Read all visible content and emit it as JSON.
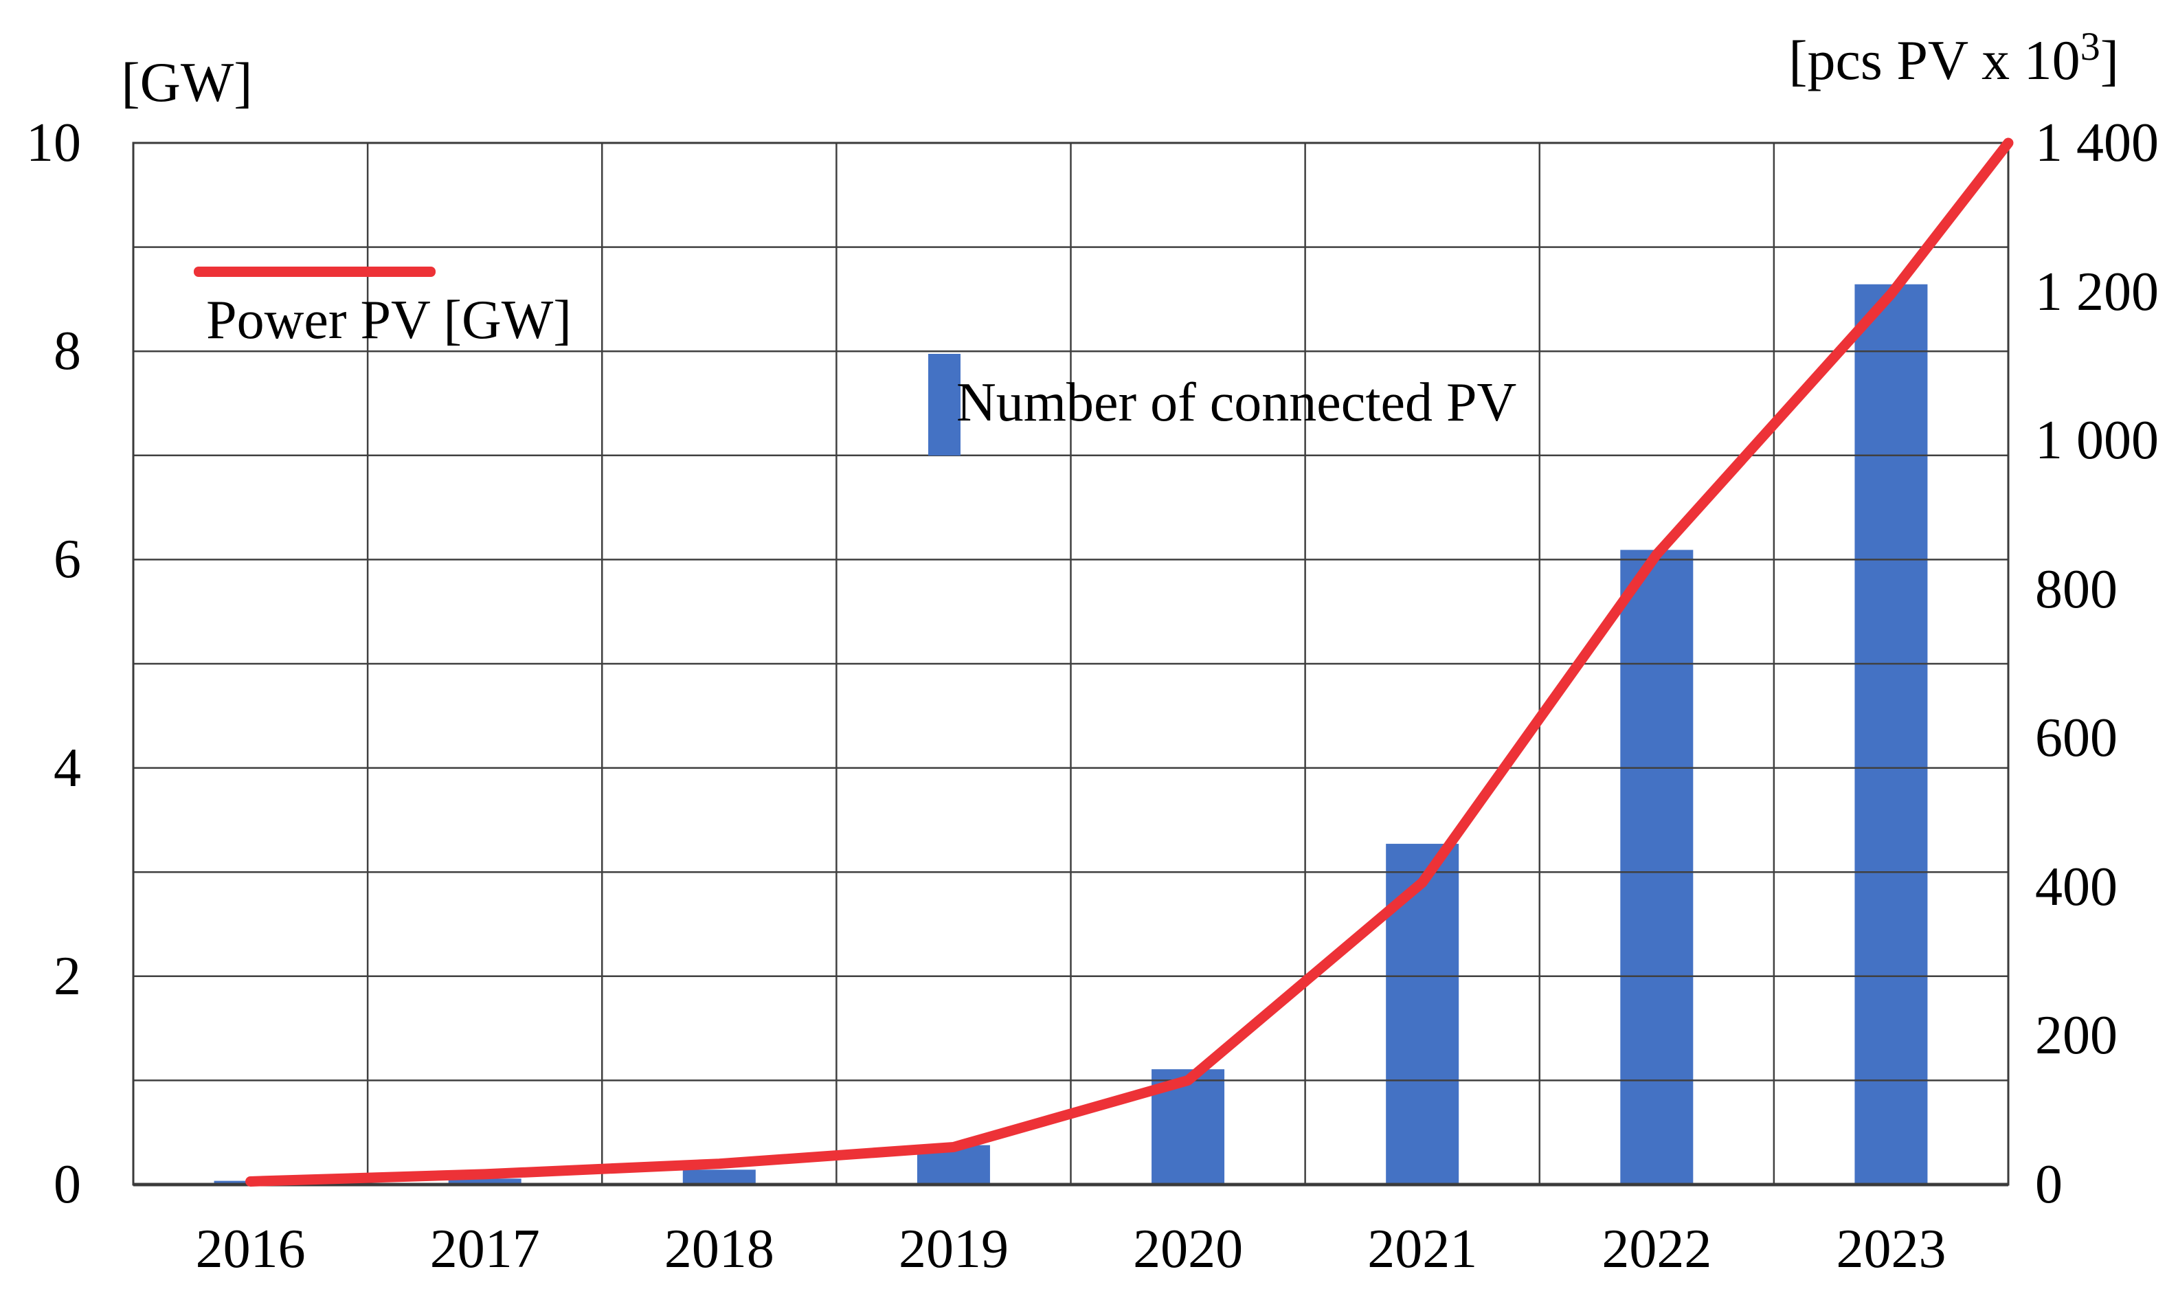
{
  "chart_data": {
    "type": "bar+line combo",
    "title": "",
    "categories": [
      "2016",
      "2017",
      "2018",
      "2019",
      "2020",
      "2021",
      "2022",
      "2023"
    ],
    "series": [
      {
        "name": "Power PV [GW]",
        "type": "line",
        "axis": "left",
        "color": "#ed3237",
        "values": [
          0.03,
          0.1,
          0.2,
          0.36,
          1.0,
          2.9,
          6.05,
          8.55
        ],
        "line_extends_to_top_right_corner": true,
        "corner_anchor_value": 10
      },
      {
        "name": "Number of connected PV",
        "type": "bar",
        "axis": "right",
        "color": "#4472c4",
        "values": [
          5,
          8,
          20,
          53,
          155,
          458,
          853,
          1210
        ]
      }
    ],
    "left_axis": {
      "title": "[GW]",
      "min": 0,
      "max": 10,
      "gridline_step": 1,
      "tick_labels": [
        "10",
        "8",
        "6",
        "4",
        "2",
        "0"
      ],
      "tick_values": [
        10,
        8,
        6,
        4,
        2,
        0
      ]
    },
    "right_axis": {
      "title": "[pcs PV x 10³]",
      "title_main": "[pcs PV x 10",
      "title_sup": "3",
      "title_end": "]",
      "min": 0,
      "max": 1400,
      "tick_labels": [
        "1 400",
        "1 200",
        "1 000",
        "800",
        "600",
        "400",
        "200",
        "0"
      ],
      "tick_values": [
        1400,
        1200,
        1000,
        800,
        600,
        400,
        200,
        0
      ]
    },
    "grid": "on",
    "legend_position": "inside-top-left"
  },
  "legend": {
    "line_label": "Power PV [GW]",
    "bar_label": "Number of connected PV"
  },
  "colors": {
    "line_red": "#ed3237",
    "bar_blue": "#4472c4",
    "gridline": "#404040",
    "axis_line": "#3a3a3a",
    "background": "#ffffff"
  }
}
